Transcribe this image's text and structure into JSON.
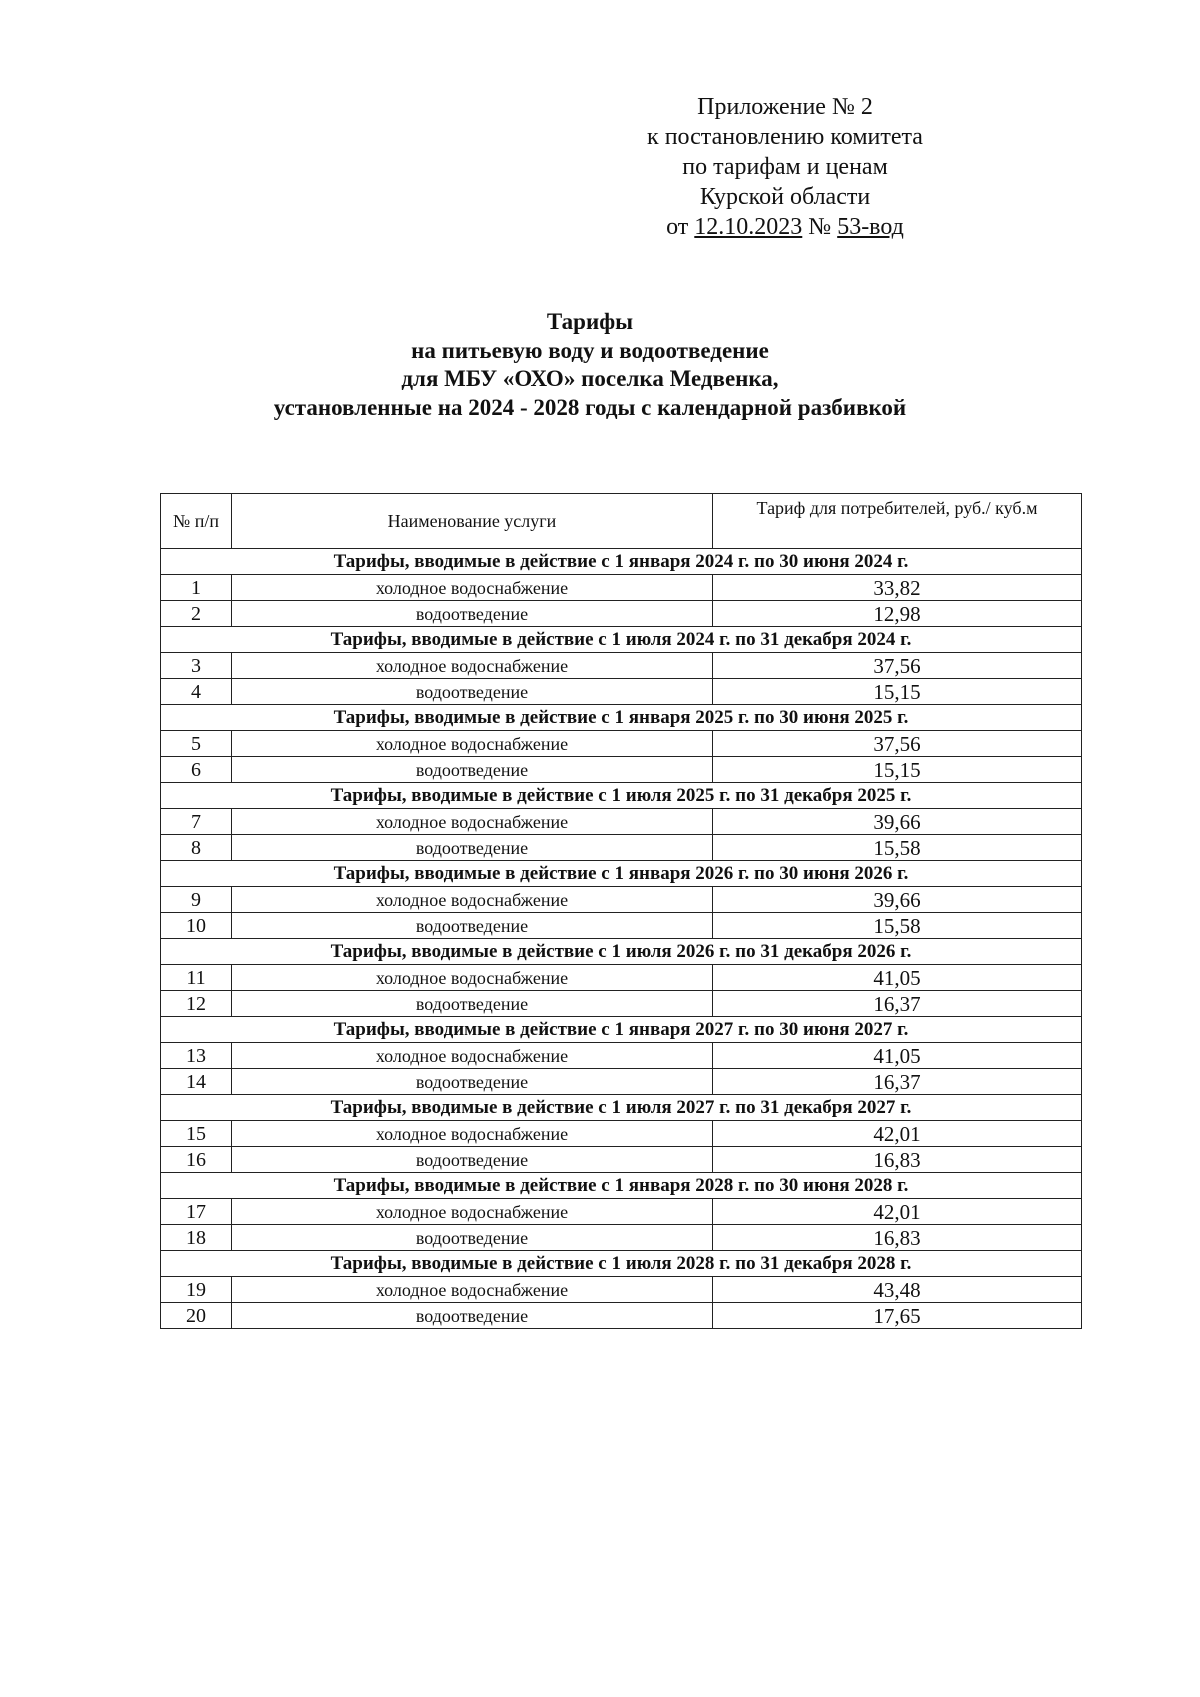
{
  "appendix": {
    "line1": "Приложение № 2",
    "line2": "к постановлению комитета",
    "line3": "по тарифам и ценам",
    "line4": "Курской области",
    "date_prefix": "от",
    "date": "12.10.2023",
    "number_prefix": "№",
    "number": "53-вод"
  },
  "title": {
    "line1": "Тарифы",
    "line2": "на питьевую воду и водоотведение",
    "line3": "для МБУ «ОХО» поселка Медвенка,",
    "line4": "установленные на 2024 - 2028 годы с календарной разбивкой"
  },
  "table": {
    "headers": {
      "num": "№ п/п",
      "service": "Наименование услуги",
      "tariff": "Тариф для потребителей, руб./ куб.м"
    },
    "sections": [
      {
        "title": "Тарифы, вводимые в действие с 1 января 2024 г. по 30 июня 2024 г.",
        "rows": [
          {
            "n": "1",
            "service": "холодное водоснабжение",
            "tariff": "33,82"
          },
          {
            "n": "2",
            "service": "водоотведение",
            "tariff": "12,98"
          }
        ]
      },
      {
        "title": "Тарифы, вводимые в действие с 1 июля 2024 г. по 31 декабря 2024 г.",
        "rows": [
          {
            "n": "3",
            "service": "холодное водоснабжение",
            "tariff": "37,56"
          },
          {
            "n": "4",
            "service": "водоотведение",
            "tariff": "15,15"
          }
        ]
      },
      {
        "title": "Тарифы, вводимые в действие с 1 января 2025 г. по 30 июня 2025 г.",
        "rows": [
          {
            "n": "5",
            "service": "холодное водоснабжение",
            "tariff": "37,56"
          },
          {
            "n": "6",
            "service": "водоотведение",
            "tariff": "15,15"
          }
        ]
      },
      {
        "title": "Тарифы, вводимые в действие с 1 июля 2025 г. по 31 декабря 2025 г.",
        "rows": [
          {
            "n": "7",
            "service": "холодное водоснабжение",
            "tariff": "39,66"
          },
          {
            "n": "8",
            "service": "водоотведение",
            "tariff": "15,58"
          }
        ]
      },
      {
        "title": "Тарифы, вводимые в действие с 1 января 2026 г. по 30 июня 2026 г.",
        "rows": [
          {
            "n": "9",
            "service": "холодное водоснабжение",
            "tariff": "39,66"
          },
          {
            "n": "10",
            "service": "водоотведение",
            "tariff": "15,58"
          }
        ]
      },
      {
        "title": "Тарифы, вводимые в действие с 1 июля 2026 г. по 31 декабря 2026 г.",
        "rows": [
          {
            "n": "11",
            "service": "холодное водоснабжение",
            "tariff": "41,05"
          },
          {
            "n": "12",
            "service": "водоотведение",
            "tariff": "16,37"
          }
        ]
      },
      {
        "title": "Тарифы, вводимые в действие с 1 января 2027 г. по 30 июня 2027 г.",
        "rows": [
          {
            "n": "13",
            "service": "холодное водоснабжение",
            "tariff": "41,05"
          },
          {
            "n": "14",
            "service": "водоотведение",
            "tariff": "16,37"
          }
        ]
      },
      {
        "title": "Тарифы, вводимые в действие с 1 июля 2027 г. по 31 декабря 2027 г.",
        "rows": [
          {
            "n": "15",
            "service": "холодное водоснабжение",
            "tariff": "42,01"
          },
          {
            "n": "16",
            "service": "водоотведение",
            "tariff": "16,83"
          }
        ]
      },
      {
        "title": "Тарифы, вводимые в действие с 1 января 2028 г. по 30 июня 2028 г.",
        "rows": [
          {
            "n": "17",
            "service": "холодное водоснабжение",
            "tariff": "42,01"
          },
          {
            "n": "18",
            "service": "водоотведение",
            "tariff": "16,83"
          }
        ]
      },
      {
        "title": "Тарифы, вводимые в действие с 1 июля 2028 г. по 31 декабря 2028 г.",
        "rows": [
          {
            "n": "19",
            "service": "холодное водоснабжение",
            "tariff": "43,48"
          },
          {
            "n": "20",
            "service": "водоотведение",
            "tariff": "17,65"
          }
        ]
      }
    ]
  }
}
